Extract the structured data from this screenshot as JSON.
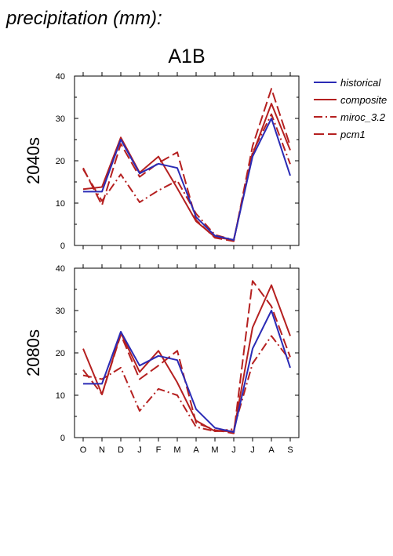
{
  "page_title": "precipitation (mm):",
  "chart_title": "A1B",
  "legend": [
    {
      "name": "historical",
      "color": "#2b2bb5",
      "dash": "solid"
    },
    {
      "name": "composite",
      "color": "#b52020",
      "dash": "solid"
    },
    {
      "name": "miroc_3.2",
      "color": "#b52020",
      "dash": "dashdot"
    },
    {
      "name": "pcm1",
      "color": "#b52020",
      "dash": "dash"
    }
  ],
  "chart_data": [
    {
      "type": "line",
      "row_label": "2040s",
      "categories": [
        "O",
        "N",
        "D",
        "J",
        "F",
        "M",
        "A",
        "M",
        "J",
        "J",
        "A",
        "S"
      ],
      "ylim": [
        0,
        40
      ],
      "yticks": [
        0,
        10,
        20,
        30,
        40
      ],
      "series": [
        {
          "name": "historical",
          "values": [
            12.7,
            12.7,
            25.0,
            17.0,
            19.3,
            18.3,
            6.7,
            2.3,
            1.3,
            21.0,
            30.0,
            16.5
          ]
        },
        {
          "name": "composite",
          "values": [
            13.3,
            13.8,
            25.5,
            17.2,
            21.0,
            13.5,
            5.7,
            2.0,
            1.3,
            21.5,
            33.5,
            22.5
          ]
        },
        {
          "name": "miroc_3.2",
          "values": [
            18.0,
            10.5,
            16.8,
            10.2,
            13.0,
            15.3,
            7.5,
            2.5,
            1.3,
            22.0,
            31.0,
            19.2
          ]
        },
        {
          "name": "pcm1",
          "values": [
            18.3,
            9.5,
            24.0,
            16.2,
            19.5,
            22.0,
            6.0,
            1.8,
            1.0,
            23.5,
            37.0,
            23.5
          ]
        }
      ]
    },
    {
      "type": "line",
      "row_label": "2080s",
      "categories": [
        "O",
        "N",
        "D",
        "J",
        "F",
        "M",
        "A",
        "M",
        "J",
        "J",
        "A",
        "S"
      ],
      "ylim": [
        0,
        40
      ],
      "yticks": [
        0,
        10,
        20,
        30,
        40
      ],
      "series": [
        {
          "name": "historical",
          "values": [
            12.7,
            12.7,
            25.0,
            17.0,
            19.3,
            18.3,
            6.7,
            2.3,
            1.3,
            21.0,
            30.0,
            16.5
          ]
        },
        {
          "name": "composite",
          "values": [
            21.0,
            10.2,
            24.7,
            15.5,
            20.5,
            13.0,
            4.0,
            1.5,
            1.5,
            26.0,
            36.0,
            24.0
          ]
        },
        {
          "name": "miroc_3.2",
          "values": [
            14.7,
            13.8,
            16.5,
            6.3,
            11.5,
            10.0,
            2.5,
            1.5,
            2.0,
            17.5,
            24.0,
            18.2
          ]
        },
        {
          "name": "pcm1",
          "values": [
            16.0,
            10.2,
            24.3,
            13.8,
            17.0,
            20.5,
            3.5,
            1.8,
            1.0,
            37.0,
            31.0,
            19.0
          ]
        }
      ]
    }
  ]
}
